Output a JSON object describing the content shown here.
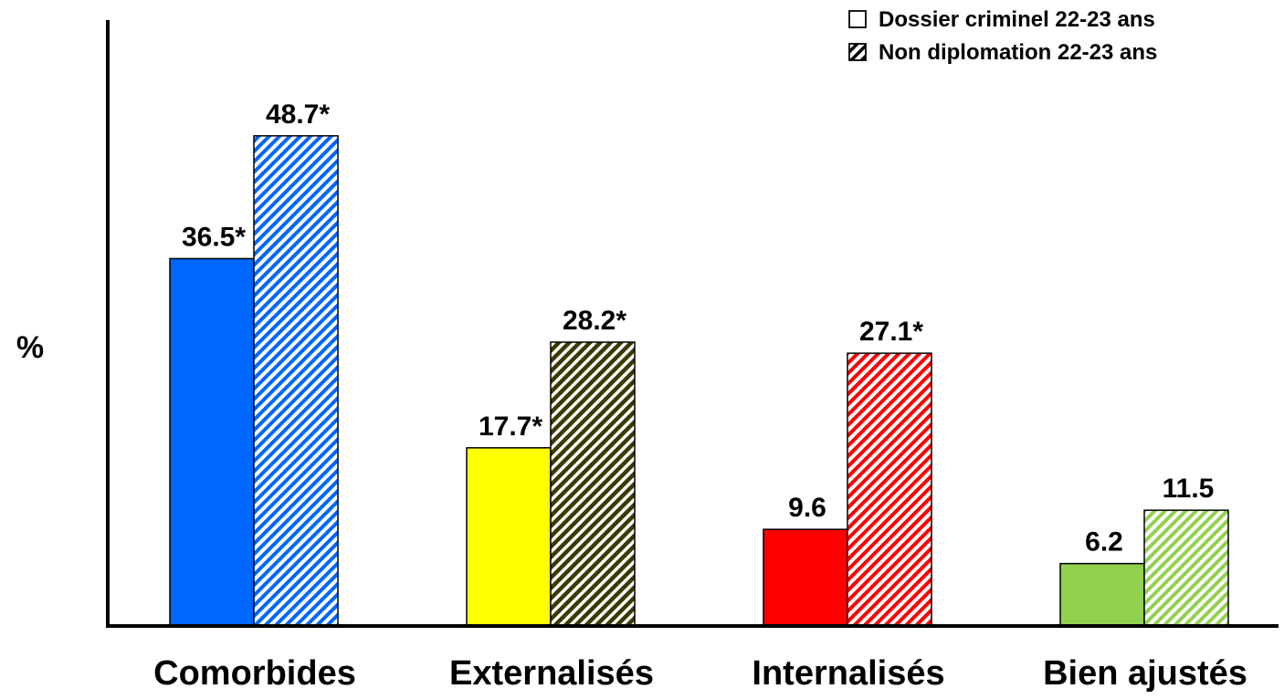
{
  "chart_data": {
    "type": "bar",
    "title": "",
    "xlabel": "",
    "ylabel": "%",
    "ylim": [
      0,
      54
    ],
    "grid": false,
    "legend_position": "top-right",
    "categories": [
      "Comorbides",
      "Externalisés",
      "Internalisés",
      "Bien ajustés"
    ],
    "category_colors": [
      "#0066ff",
      "#ffff00",
      "#ff0000",
      "#92d050"
    ],
    "series": [
      {
        "name": "Dossier criminel 22-23 ans",
        "fill": "solid",
        "values": [
          36.5,
          17.7,
          9.6,
          6.2
        ],
        "data_labels": [
          "36.5*",
          "17.7*",
          "9.6",
          "6.2"
        ]
      },
      {
        "name": "Non diplomation 22-23 ans",
        "fill": "hatched",
        "values": [
          48.7,
          28.2,
          27.1,
          11.5
        ],
        "data_labels": [
          "48.7*",
          "28.2*",
          "27.1*",
          "11.5"
        ]
      }
    ]
  }
}
